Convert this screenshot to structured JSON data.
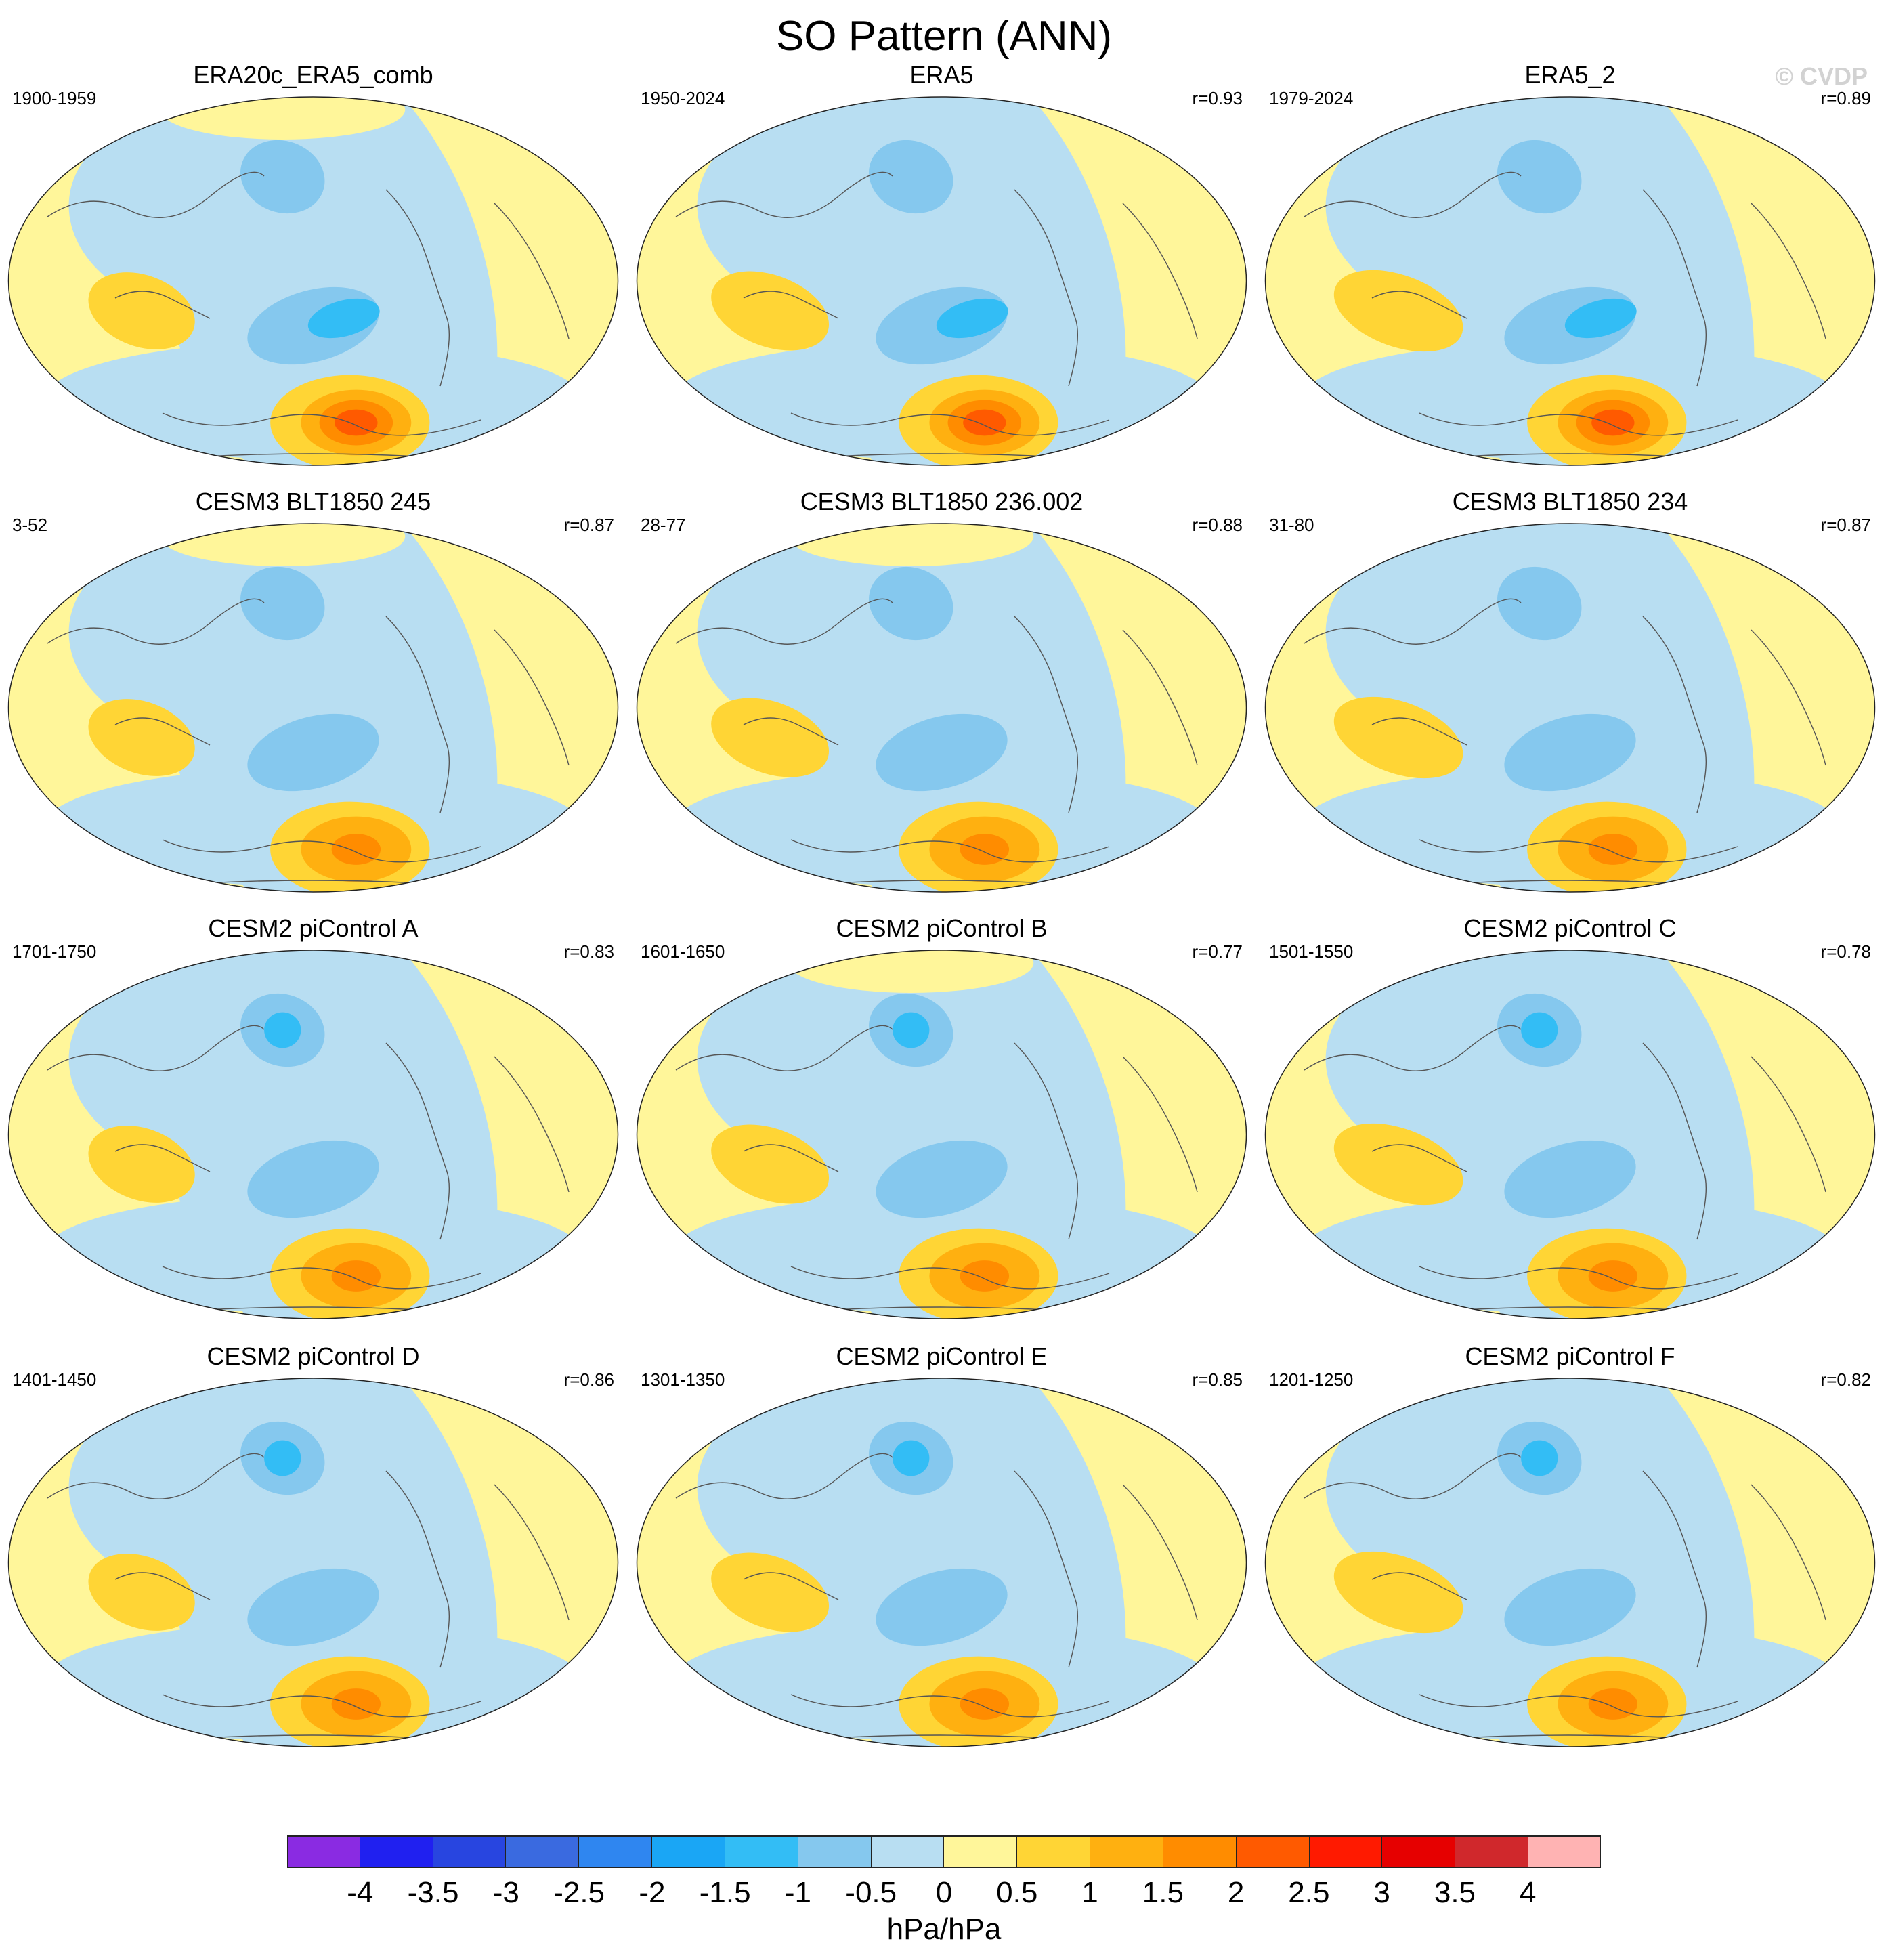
{
  "title": "SO Pattern (ANN)",
  "watermark": "© CVDP",
  "chart_data": {
    "type": "heatmap",
    "title": "SO Pattern (ANN)",
    "units": "hPa/hPa",
    "colorbar": {
      "ticks": [
        "-4",
        "-3.5",
        "-3",
        "-2.5",
        "-2",
        "-1.5",
        "-1",
        "-0.5",
        "0",
        "0.5",
        "1",
        "1.5",
        "2",
        "2.5",
        "3",
        "3.5",
        "4"
      ],
      "colors": [
        "#8a2be2",
        "#2020f0",
        "#2845e0",
        "#3a6ae0",
        "#2f86f0",
        "#1aa6f5",
        "#33bdf5",
        "#85c8ee",
        "#b8def2",
        "#fff69a",
        "#ffd535",
        "#ffb010",
        "#ff8c00",
        "#ff5a00",
        "#ff1a00",
        "#e60000",
        "#d0282c",
        "#ffb3b3"
      ]
    },
    "panels": [
      {
        "title": "ERA20c_ERA5_comb",
        "period": "1900-1959",
        "r": ""
      },
      {
        "title": "ERA5",
        "period": "1950-2024",
        "r": "r=0.93"
      },
      {
        "title": "ERA5_2",
        "period": "1979-2024",
        "r": "r=0.89"
      },
      {
        "title": "CESM3 BLT1850 245",
        "period": "3-52",
        "r": "r=0.87"
      },
      {
        "title": "CESM3 BLT1850 236.002",
        "period": "28-77",
        "r": "r=0.88"
      },
      {
        "title": "CESM3 BLT1850 234",
        "period": "31-80",
        "r": "r=0.87"
      },
      {
        "title": "CESM2 piControl A",
        "period": "1701-1750",
        "r": "r=0.83"
      },
      {
        "title": "CESM2 piControl B",
        "period": "1601-1650",
        "r": "r=0.77"
      },
      {
        "title": "CESM2 piControl C",
        "period": "1501-1550",
        "r": "r=0.78"
      },
      {
        "title": "CESM2 piControl D",
        "period": "1401-1450",
        "r": "r=0.86"
      },
      {
        "title": "CESM2 piControl E",
        "period": "1301-1350",
        "r": "r=0.85"
      },
      {
        "title": "CESM2 piControl F",
        "period": "1201-1250",
        "r": "r=0.82"
      }
    ]
  }
}
